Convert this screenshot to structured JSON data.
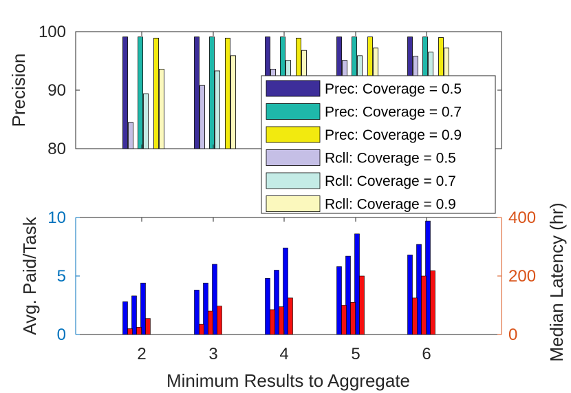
{
  "chart_data": [
    {
      "type": "bar",
      "name": "precision-recall",
      "ylabel": "Precision",
      "ylim": [
        80,
        100
      ],
      "yticks": [
        "80",
        "90",
        "100"
      ],
      "categories": [
        "2",
        "3",
        "4",
        "5",
        "6"
      ],
      "series": [
        {
          "name": "Prec: Coverage = 0.5",
          "color": "#3d2e9a",
          "values": [
            99.1,
            99.1,
            99.1,
            99.1,
            99.1
          ]
        },
        {
          "name": "Rcll: Coverage = 0.5",
          "color": "#c5bfe6",
          "values": [
            84.5,
            90.8,
            93.6,
            95.1,
            95.8
          ]
        },
        {
          "name": "Prec: Coverage = 0.7",
          "color": "#1fb8aa",
          "values": [
            99.1,
            99.1,
            99.1,
            99.1,
            99.1
          ]
        },
        {
          "name": "Rcll: Coverage = 0.7",
          "color": "#c4ebe6",
          "values": [
            89.4,
            93.3,
            95.1,
            95.9,
            96.5
          ]
        },
        {
          "name": "Prec: Coverage = 0.9",
          "color": "#f2ea0f",
          "values": [
            98.9,
            98.9,
            98.9,
            99.1,
            99.0
          ]
        },
        {
          "name": "Rcll: Coverage = 0.9",
          "color": "#fbf8bd",
          "values": [
            93.6,
            95.9,
            96.8,
            97.2,
            97.2
          ]
        }
      ],
      "legend_placement": "center-right",
      "legend": [
        "Prec: Coverage = 0.5",
        "Prec: Coverage = 0.7",
        "Prec: Coverage = 0.9",
        "Rcll: Coverage = 0.5",
        "Rcll: Coverage = 0.7",
        "Rcll: Coverage = 0.9"
      ]
    },
    {
      "type": "bar",
      "name": "cost-latency",
      "xlabel": "Minimum Results to Aggregate",
      "ylabel": "Avg. Paid/Task",
      "ylabel_right": "Median Latency (hr)",
      "ylim": [
        0,
        10
      ],
      "ylim_right": [
        0,
        400
      ],
      "yticks": [
        "0",
        "5",
        "10"
      ],
      "yticks_right": [
        "0",
        "200",
        "400"
      ],
      "left_axis_color": "#0072bd",
      "right_axis_color": "#d95319",
      "categories": [
        "2",
        "3",
        "4",
        "5",
        "6"
      ],
      "groups": [
        {
          "paid": [
            2.8,
            3.3,
            4.4
          ],
          "latency": [
            20,
            25,
            55
          ]
        },
        {
          "paid": [
            3.8,
            4.4,
            6.0
          ],
          "latency": [
            35,
            80,
            97
          ]
        },
        {
          "paid": [
            4.8,
            5.5,
            7.4
          ],
          "latency": [
            85,
            95,
            125
          ]
        },
        {
          "paid": [
            5.8,
            6.7,
            8.6
          ],
          "latency": [
            100,
            110,
            200
          ]
        },
        {
          "paid": [
            6.8,
            7.7,
            9.7
          ],
          "latency": [
            125,
            200,
            218
          ]
        }
      ],
      "paid_color": "#0000f5",
      "latency_color": "#f51010"
    }
  ]
}
